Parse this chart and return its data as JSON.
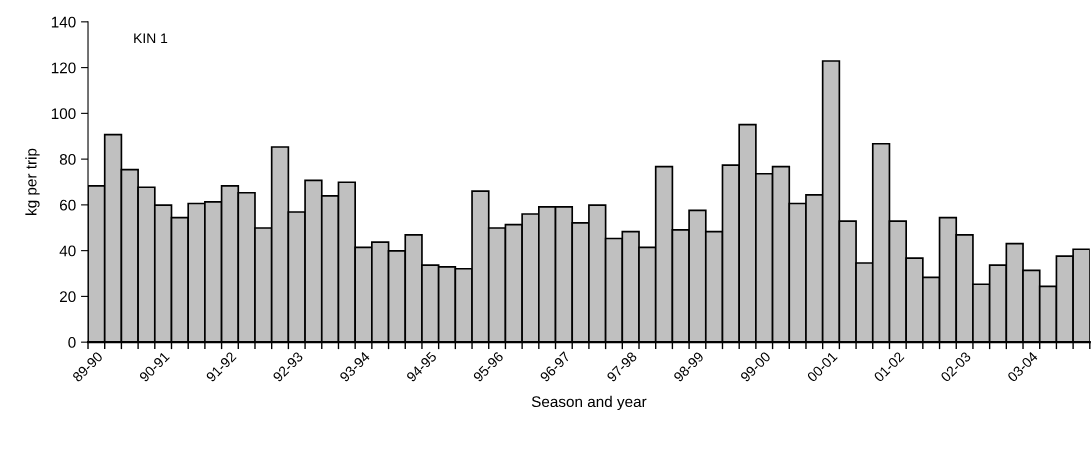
{
  "chart_data": {
    "type": "bar",
    "xlabel": "Season and year",
    "ylabel": "kg per trip",
    "annotations": [
      "KIN 1"
    ],
    "categories": [
      "89-90",
      null,
      null,
      null,
      "90-91",
      null,
      null,
      null,
      "91-92",
      null,
      null,
      null,
      "92-93",
      null,
      null,
      null,
      "93-94",
      null,
      null,
      null,
      "94-95",
      null,
      null,
      null,
      "95-96",
      null,
      null,
      null,
      "96-97",
      null,
      null,
      null,
      "97-98",
      null,
      null,
      null,
      "98-99",
      null,
      null,
      null,
      "99-00",
      null,
      null,
      null,
      "00-01",
      null,
      null,
      null,
      "01-02",
      null,
      null,
      null,
      "02-03",
      null,
      null,
      null,
      "03-04",
      null,
      null,
      null
    ],
    "values": [
      68.3,
      90.7,
      75.4,
      67.7,
      59.9,
      54.4,
      60.6,
      61.3,
      68.3,
      65.3,
      49.9,
      85.3,
      56.9,
      70.7,
      63.9,
      69.9,
      41.4,
      43.7,
      39.9,
      46.9,
      33.7,
      32.9,
      32.1,
      66,
      49.9,
      51.4,
      56,
      59.1,
      59.1,
      52.1,
      59.9,
      45.3,
      48.3,
      41.4,
      76.7,
      49.1,
      57.6,
      48.3,
      77.4,
      95.1,
      73.6,
      76.7,
      60.6,
      64.4,
      122.9,
      52.9,
      34.6,
      86.7,
      52.9,
      36.7,
      28.3,
      54.4,
      46.9,
      25.3,
      33.7,
      43.1,
      31.4,
      24.4,
      37.6,
      40.6
    ],
    "color": "#c0c0c0",
    "ylim": [
      0,
      140
    ],
    "yticks": [
      0,
      20,
      40,
      60,
      80,
      100,
      120,
      140
    ],
    "grid": false,
    "legend": false
  }
}
